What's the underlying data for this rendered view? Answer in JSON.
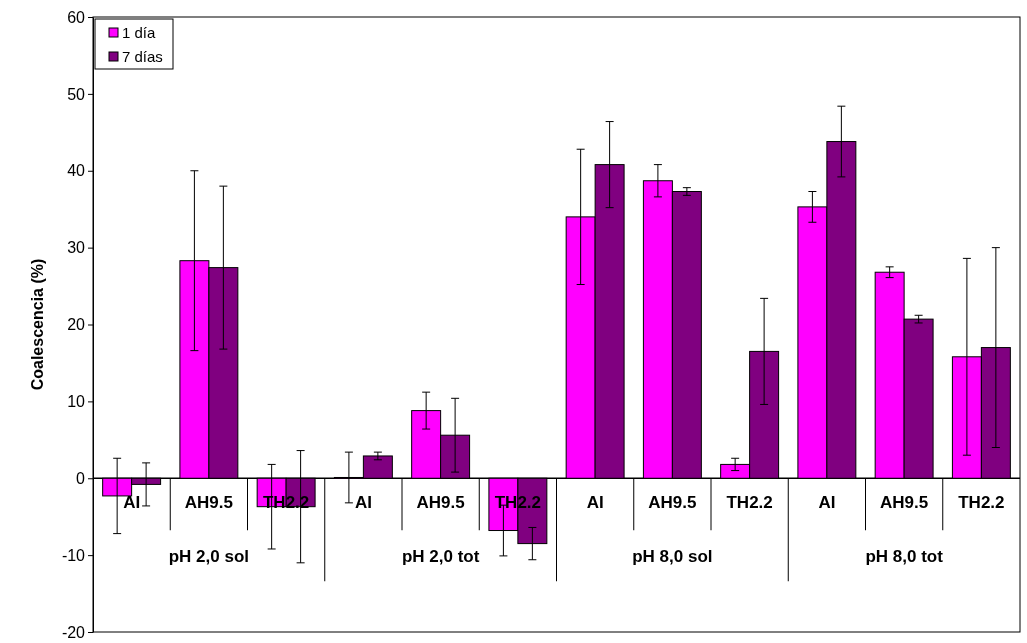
{
  "chart_data": {
    "type": "bar",
    "ylabel": "Coalescencia (%)",
    "categories": [
      "AI",
      "AH9.5",
      "TH2.2",
      "AI",
      "AH9.5",
      "TH2.2",
      "AI",
      "AH9.5",
      "TH2.2",
      "AI",
      "AH9.5",
      "TH2.2"
    ],
    "series": [
      {
        "name": "1 día",
        "color": "#ff00ff",
        "values": [
          -2.3,
          28.3,
          -3.7,
          0.1,
          8.8,
          -6.8,
          34.0,
          38.7,
          1.8,
          35.3,
          26.8,
          15.8
        ],
        "errors": [
          4.9,
          11.7,
          5.5,
          3.3,
          2.4,
          3.3,
          8.8,
          2.1,
          0.8,
          2.0,
          0.7,
          12.8
        ]
      },
      {
        "name": "7 días",
        "color": "#800080",
        "values": [
          -0.8,
          27.4,
          -3.7,
          2.9,
          5.6,
          -8.5,
          40.8,
          37.3,
          16.5,
          43.8,
          20.7,
          17.0
        ],
        "errors": [
          2.8,
          10.6,
          7.3,
          0.5,
          4.8,
          2.1,
          5.6,
          0.5,
          6.9,
          4.6,
          0.5,
          13.0
        ]
      }
    ],
    "annotations": [
      "pH 2,0 sol",
      "pH 2,0 tot",
      "pH 8,0 sol",
      "pH 8,0 tot"
    ],
    "ylim": [
      -20,
      60
    ],
    "yticks": [
      -20,
      -10,
      0,
      10,
      20,
      30,
      40,
      50,
      60
    ],
    "legend": "top left"
  }
}
